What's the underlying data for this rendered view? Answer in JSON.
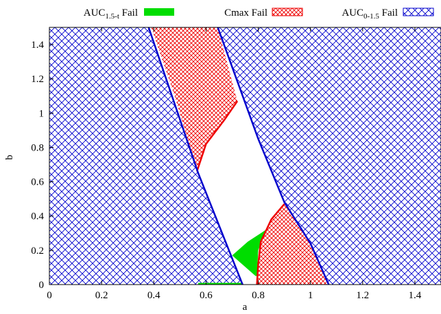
{
  "chart_data": {
    "type": "area",
    "title": "",
    "xlabel": "a",
    "ylabel": "b",
    "xlim": [
      0,
      1.5
    ],
    "ylim": [
      0,
      1.5
    ],
    "x_ticks": [
      "0",
      "0.2",
      "0.4",
      "0.6",
      "0.8",
      "1",
      "1.2",
      "1.4"
    ],
    "x_tick_values": [
      0,
      0.2,
      0.4,
      0.6,
      0.8,
      1,
      1.2,
      1.4
    ],
    "y_ticks": [
      "0",
      "0.2",
      "0.4",
      "0.6",
      "0.8",
      "1",
      "1.2",
      "1.4"
    ],
    "y_tick_values": [
      0,
      0.2,
      0.4,
      0.6,
      0.8,
      1,
      1.2,
      1.4
    ],
    "legend_position": "top",
    "legend": [
      {
        "base": "AUC",
        "sub": "1.5-t",
        "suffix": " Fail",
        "style": "solid green fill"
      },
      {
        "base": "Cmax",
        "sub": "",
        "suffix": " Fail",
        "style": "red crosshatch"
      },
      {
        "base": "AUC",
        "sub": "0-1.5",
        "suffix": " Fail",
        "style": "blue crosshatch"
      }
    ],
    "colors": {
      "auc_1_5_t": "#00dd00",
      "cmax": "#ee0000",
      "auc_0_1_5": "#0000cc"
    },
    "regions": {
      "auc_0_1_5_fail_left": [
        [
          0,
          0
        ],
        [
          0.74,
          0
        ],
        [
          0.57,
          0.65
        ],
        [
          0.38,
          1.5
        ],
        [
          0,
          1.5
        ]
      ],
      "auc_0_1_5_fail_right": [
        [
          1.07,
          0
        ],
        [
          1.5,
          0
        ],
        [
          1.5,
          1.5
        ],
        [
          0.645,
          1.5
        ],
        [
          0.8,
          0.85
        ],
        [
          0.865,
          0.6
        ],
        [
          0.9,
          0.48
        ],
        [
          1.0,
          0.24
        ]
      ],
      "cmax_fail_top": [
        [
          0.39,
          1.5
        ],
        [
          0.645,
          1.5
        ],
        [
          0.72,
          1.07
        ],
        [
          0.67,
          0.96
        ],
        [
          0.6,
          0.82
        ],
        [
          0.565,
          0.66
        ],
        [
          0.48,
          1.1
        ]
      ],
      "cmax_fail_bottom": [
        [
          0.795,
          0
        ],
        [
          1.07,
          0
        ],
        [
          1.0,
          0.24
        ],
        [
          0.9,
          0.47
        ],
        [
          0.85,
          0.38
        ],
        [
          0.81,
          0.25
        ],
        [
          0.8,
          0.12
        ]
      ],
      "auc_1_5_t_fail_upper": [
        [
          0.7,
          0.17
        ],
        [
          0.76,
          0.25
        ],
        [
          0.83,
          0.32
        ],
        [
          0.88,
          0.37
        ],
        [
          0.83,
          0.32
        ],
        [
          0.8,
          0.2
        ],
        [
          0.795,
          0.05
        ],
        [
          0.79,
          0.05
        ]
      ],
      "auc_1_5_t_fail_bottom": [
        [
          0.57,
          0
        ],
        [
          0.74,
          0
        ],
        [
          0.735,
          0.01
        ],
        [
          0.57,
          0.01
        ]
      ]
    },
    "boundaries": {
      "blue_left": [
        [
          0.38,
          1.5
        ],
        [
          0.57,
          0.65
        ],
        [
          0.74,
          0
        ]
      ],
      "blue_right": [
        [
          0.645,
          1.5
        ],
        [
          0.8,
          0.85
        ],
        [
          0.9,
          0.48
        ],
        [
          1.0,
          0.24
        ],
        [
          1.07,
          0
        ]
      ],
      "red_upper": [
        [
          0.565,
          0.66
        ],
        [
          0.6,
          0.82
        ],
        [
          0.67,
          0.96
        ],
        [
          0.72,
          1.07
        ]
      ],
      "red_lower": [
        [
          0.795,
          0
        ],
        [
          0.8,
          0.12
        ],
        [
          0.81,
          0.25
        ],
        [
          0.85,
          0.38
        ],
        [
          0.9,
          0.47
        ]
      ]
    }
  }
}
